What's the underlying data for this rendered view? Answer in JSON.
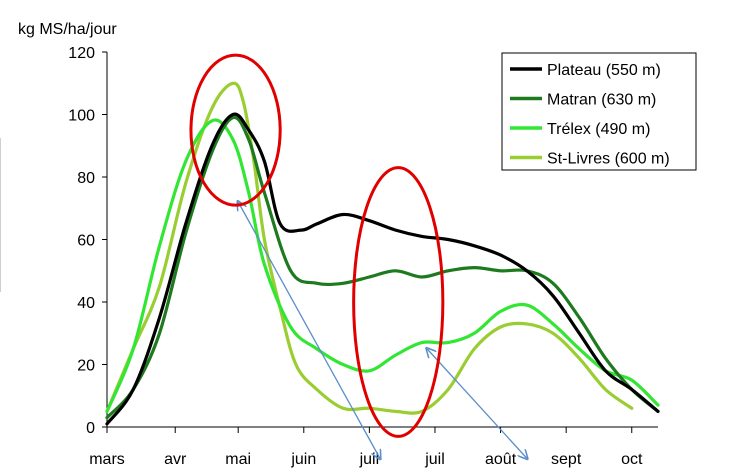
{
  "chart_data": {
    "type": "line",
    "ylabel": "kg MS/ha/jour",
    "ylim": [
      0,
      120
    ],
    "yticks": [
      0,
      20,
      40,
      60,
      80,
      100,
      120
    ],
    "xlim": [
      0,
      10.5
    ],
    "categories": [
      "mars",
      "avr",
      "mai",
      "juin",
      "juil",
      "juil",
      "août",
      "sept",
      "oct"
    ],
    "category_positions": [
      0,
      1.3,
      2.5,
      3.75,
      5,
      6.25,
      7.5,
      8.75,
      10.0
    ],
    "grid": false,
    "legend_position": "top-right",
    "series": [
      {
        "name": "Plateau (550 m)",
        "color": "#000000",
        "x": [
          0,
          0.5,
          1.0,
          1.5,
          2.0,
          2.4,
          2.7,
          3.0,
          3.3,
          3.7,
          4.0,
          4.5,
          5.0,
          5.5,
          6.0,
          6.5,
          7.0,
          7.5,
          8.0,
          8.5,
          9.0,
          9.5,
          10.0,
          10.5
        ],
        "y": [
          1,
          12,
          35,
          65,
          90,
          100,
          95,
          85,
          65,
          63,
          65,
          68,
          66,
          63,
          61,
          60,
          58,
          55,
          50,
          42,
          30,
          18,
          12,
          5
        ]
      },
      {
        "name": "Matran (630 m)",
        "color": "#1e7a1e",
        "x": [
          0,
          0.5,
          1.0,
          1.5,
          2.0,
          2.4,
          2.7,
          3.0,
          3.5,
          4.0,
          4.5,
          5.0,
          5.5,
          6.0,
          6.5,
          7.0,
          7.5,
          8.0,
          8.5,
          9.0,
          9.5,
          10.0,
          10.5
        ],
        "y": [
          3,
          12,
          30,
          62,
          88,
          99,
          92,
          75,
          50,
          46,
          46,
          48,
          50,
          48,
          50,
          51,
          50,
          50,
          46,
          35,
          22,
          12,
          5
        ]
      },
      {
        "name": "Trélex (490 m)",
        "color": "#33e633",
        "x": [
          0,
          0.5,
          1.0,
          1.5,
          2.0,
          2.4,
          2.7,
          3.0,
          3.5,
          4.0,
          4.5,
          5.0,
          5.5,
          6.0,
          6.5,
          7.0,
          7.5,
          8.0,
          8.5,
          9.0,
          9.5,
          10.0,
          10.5
        ],
        "y": [
          5,
          25,
          58,
          85,
          98,
          92,
          75,
          52,
          32,
          25,
          20,
          18,
          23,
          27,
          27,
          30,
          37,
          39,
          33,
          25,
          18,
          15,
          7
        ]
      },
      {
        "name": "St-Livres (600 m)",
        "color": "#9acd32",
        "x": [
          0,
          0.5,
          1.0,
          1.5,
          2.0,
          2.4,
          2.6,
          2.8,
          3.0,
          3.3,
          3.6,
          4.0,
          4.5,
          5.0,
          5.5,
          6.0,
          6.5,
          7.0,
          7.5,
          8.0,
          8.5,
          9.0,
          9.5,
          10.0
        ],
        "y": [
          5,
          25,
          45,
          78,
          102,
          110,
          104,
          85,
          60,
          38,
          20,
          12,
          6,
          6,
          5,
          5,
          12,
          25,
          32,
          33,
          30,
          22,
          12,
          6
        ]
      }
    ],
    "annotations": {
      "ellipses": [
        {
          "label": "peak",
          "color": "#e00000",
          "x_center": 2.45,
          "y_center": 95,
          "rx": 0.85,
          "ry": 24
        },
        {
          "label": "summer",
          "color": "#e00000",
          "x_center": 5.55,
          "y_center": 40,
          "rx": 0.85,
          "ry": 43
        }
      ],
      "arrows": [
        {
          "color": "#5b8ec9",
          "from": [
            6.1,
            25
          ],
          "to": [
            8.0,
            -10
          ]
        },
        {
          "color": "#5b8ec9",
          "from": [
            2.5,
            72
          ],
          "to": [
            5.2,
            -10
          ]
        }
      ]
    }
  }
}
